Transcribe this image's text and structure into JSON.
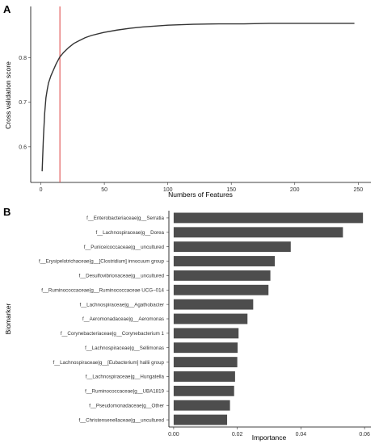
{
  "panels": {
    "a_letter": "A",
    "b_letter": "B"
  },
  "chart_data": [
    {
      "type": "line",
      "xlabel": "Numbers of Features",
      "ylabel": "Cross validation score",
      "xlim": [
        -8,
        260
      ],
      "ylim": [
        0.52,
        0.915
      ],
      "xticks": [
        0,
        50,
        100,
        150,
        200,
        250
      ],
      "yticks": [
        0.6,
        0.7,
        0.8
      ],
      "grid": false,
      "vline": {
        "x": 15,
        "color": "#e05050"
      },
      "line_color": "#333333",
      "series": [
        {
          "x": [
            1,
            2,
            3,
            4,
            5,
            6,
            8,
            10,
            12,
            15,
            18,
            22,
            26,
            30,
            35,
            40,
            50,
            60,
            70,
            80,
            90,
            100,
            120,
            140,
            160,
            180,
            200,
            220,
            240,
            247
          ],
          "y": [
            0.545,
            0.62,
            0.675,
            0.71,
            0.728,
            0.743,
            0.76,
            0.773,
            0.786,
            0.802,
            0.812,
            0.823,
            0.832,
            0.838,
            0.845,
            0.85,
            0.857,
            0.862,
            0.866,
            0.869,
            0.871,
            0.873,
            0.875,
            0.876,
            0.876,
            0.877,
            0.877,
            0.877,
            0.877,
            0.877
          ]
        }
      ]
    },
    {
      "type": "bar",
      "orientation": "horizontal",
      "xlabel": "Importance",
      "ylabel": "Biomarker",
      "xlim": [
        -0.0015,
        0.062
      ],
      "xticks": [
        0.0,
        0.02,
        0.04,
        0.06
      ],
      "xtick_labels": [
        "0.00",
        "0.02",
        "0.04",
        "0.06"
      ],
      "grid": false,
      "bar_color": "#4d4d4d",
      "categories": [
        "f__Enterobacteriaceae|g__Serratia",
        "f__Lachnospiraceae|g__Dorea",
        "f__Puniceicoccaceae|g__uncultured",
        "f__Erysipelotrichaceae|g__[Clostridium] innocuum group",
        "f__Desulfovibrionaceae|g__uncultured",
        "f__Ruminococcaceae|g__Ruminococcaceae UCG−014",
        "f__Lachnospiraceae|g__Agathobacter",
        "f__Aeromonadaceae|g__Aeromonas",
        "f__Corynebacteriaceae|g__Corynebacterium 1",
        "f__Lachnospiraceae|g__Sellimonas",
        "f__Lachnospiraceae|g__[Eubacterium] hallii group",
        "f__Lachnospiraceae|g__Hungatella",
        "f__Ruminococcaceae|g__UBA1819",
        "f__Pseudomonadaceae|g__Other",
        "f__Christensenellaceae|g__uncultured"
      ],
      "values": [
        0.0595,
        0.0532,
        0.0368,
        0.0318,
        0.0304,
        0.0298,
        0.025,
        0.0232,
        0.0204,
        0.0201,
        0.02,
        0.0193,
        0.019,
        0.0177,
        0.0168
      ]
    }
  ]
}
